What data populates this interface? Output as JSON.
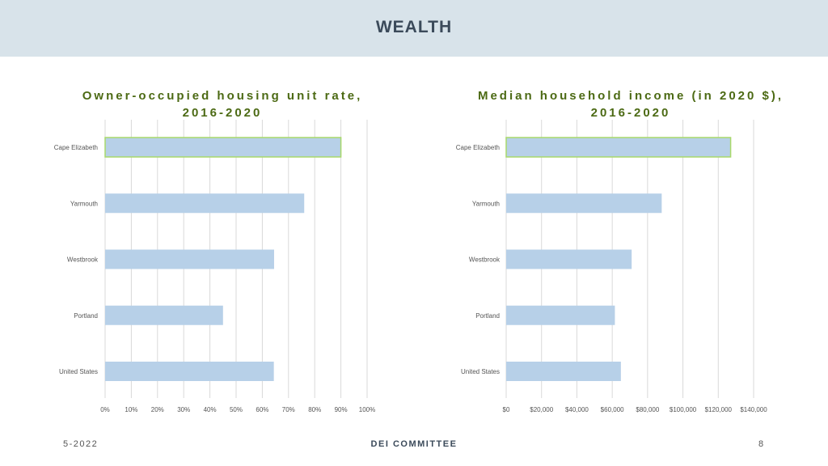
{
  "header": {
    "title": "WEALTH"
  },
  "footer": {
    "date": "5-2022",
    "committee": "DEI COMMITTEE",
    "page": "8"
  },
  "colors": {
    "bar": "#b7d0e8",
    "highlight_outline": "#a8d96a",
    "grid": "#d9d9d9",
    "title": "#4c6a14",
    "label": "#555555"
  },
  "chart_data": [
    {
      "type": "bar",
      "orientation": "horizontal",
      "title_line1": "Owner-occupied housing unit rate,",
      "title_line2": "2016-2020",
      "categories": [
        "Cape Elizabeth",
        "Yarmouth",
        "Westbrook",
        "Portland",
        "United States"
      ],
      "values": [
        90,
        76,
        64.5,
        45,
        64.4
      ],
      "highlight_index": 0,
      "xlim": [
        0,
        100
      ],
      "ticks": [
        0,
        10,
        20,
        30,
        40,
        50,
        60,
        70,
        80,
        90,
        100
      ],
      "tick_labels": [
        "0%",
        "10%",
        "20%",
        "30%",
        "40%",
        "50%",
        "60%",
        "70%",
        "80%",
        "90%",
        "100%"
      ]
    },
    {
      "type": "bar",
      "orientation": "horizontal",
      "title_line1": "Median household income (in 2020 $),",
      "title_line2": "2016-2020",
      "categories": [
        "Cape Elizabeth",
        "Yarmouth",
        "Westbrook",
        "Portland",
        "United States"
      ],
      "values": [
        127000,
        88000,
        71000,
        61500,
        64900
      ],
      "highlight_index": 0,
      "xlim": [
        0,
        140000
      ],
      "ticks": [
        0,
        20000,
        40000,
        60000,
        80000,
        100000,
        120000,
        140000
      ],
      "tick_labels": [
        "$0",
        "$20,000",
        "$40,000",
        "$60,000",
        "$80,000",
        "$100,000",
        "$120,000",
        "$140,000"
      ]
    }
  ]
}
